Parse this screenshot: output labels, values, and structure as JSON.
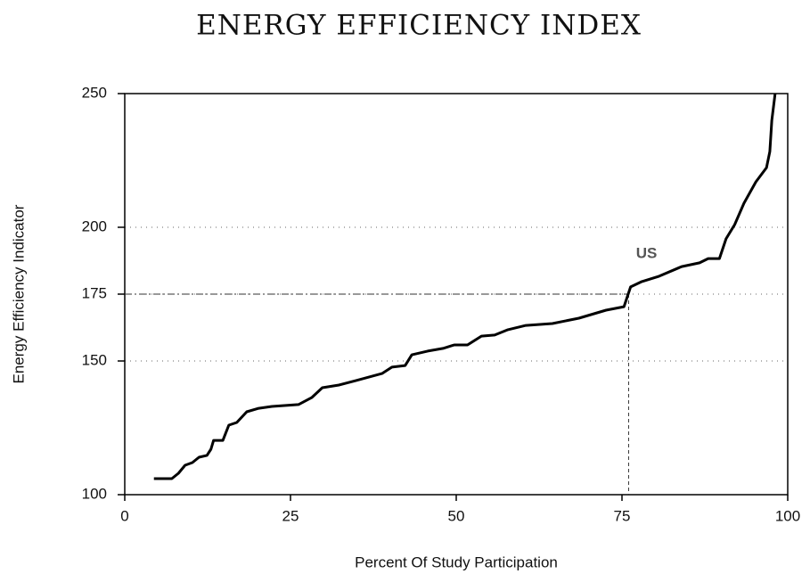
{
  "chart_data": {
    "type": "line",
    "title": "ENERGY EFFICIENCY INDEX",
    "x_label": "Percent Of Study Participation",
    "y_label": "Energy Efficiency Indicator",
    "x": [
      4.4,
      7.1,
      8.1,
      9.1,
      10.2,
      11.2,
      12.4,
      13,
      13.4,
      14.8,
      15.7,
      16.9,
      18.4,
      20.2,
      22.2,
      26.2,
      28.2,
      29.8,
      32.3,
      34.9,
      38.8,
      40.3,
      42.3,
      43.3,
      45.7,
      48,
      49.7,
      51.7,
      53.8,
      55.8,
      57.8,
      60.5,
      64.5,
      68.5,
      72.6,
      75.3,
      76.3,
      78,
      80.6,
      84,
      86.7,
      88,
      89.7,
      90.7,
      92,
      93.4,
      95.2,
      96.8,
      97.3,
      97.6,
      98.1
    ],
    "series": [
      {
        "color": "#000000",
        "values": [
          106,
          106,
          108,
          111,
          112,
          114,
          114.7,
          117,
          120.3,
          120.3,
          126,
          127,
          131,
          132.3,
          133,
          133.7,
          136.3,
          140,
          141,
          142.7,
          145.3,
          147.7,
          148.3,
          152.3,
          153.7,
          154.7,
          156,
          156,
          159.3,
          159.7,
          161.7,
          163.3,
          164,
          166,
          169,
          170.3,
          177.7,
          179.7,
          181.7,
          185.3,
          186.7,
          188.3,
          188.3,
          195.7,
          201,
          209,
          217,
          222.3,
          228.3,
          240,
          250
        ]
      }
    ],
    "xlim": [
      0,
      100
    ],
    "xticks": [
      0,
      25,
      50,
      75,
      100
    ],
    "ylim": [
      100,
      250
    ],
    "yticks": [
      100,
      150,
      175,
      200,
      250
    ],
    "grid": true,
    "reference": {
      "x": 76,
      "y": 175
    },
    "annotation": {
      "text": "US",
      "x": 78.7,
      "y": 190
    }
  }
}
